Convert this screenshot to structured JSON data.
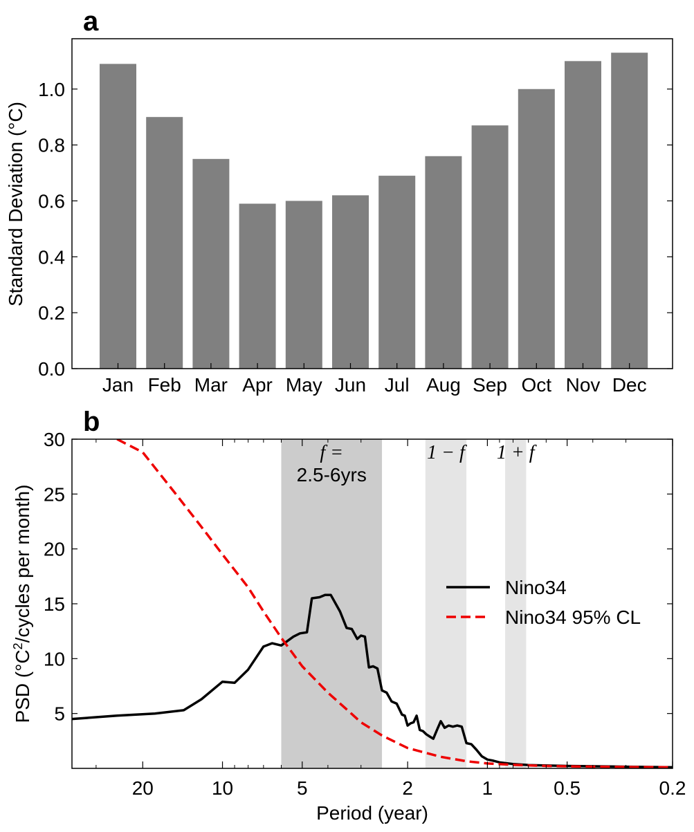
{
  "chart_data": [
    {
      "panel": "a",
      "type": "bar",
      "title": "",
      "xlabel": "",
      "ylabel": "Standard Deviation (°C)",
      "categories": [
        "Jan",
        "Feb",
        "Mar",
        "Apr",
        "May",
        "Jun",
        "Jul",
        "Aug",
        "Sep",
        "Oct",
        "Nov",
        "Dec"
      ],
      "values": [
        1.09,
        0.9,
        0.75,
        0.59,
        0.6,
        0.62,
        0.69,
        0.76,
        0.87,
        1.0,
        1.1,
        1.13
      ],
      "ylim": [
        0,
        1.18
      ],
      "yticks": [
        "0.0",
        "0.2",
        "0.4",
        "0.6",
        "0.8",
        "1.0"
      ],
      "bar_color": "#808080",
      "grid": false
    },
    {
      "panel": "b",
      "type": "line",
      "title": "",
      "xlabel": "Period (year)",
      "ylabel_parts": [
        "PSD (°C",
        "2",
        "/cycles per month)"
      ],
      "xscale": "log-frequency (period axis reversed)",
      "xlim": [
        37,
        0.2
      ],
      "ylim": [
        0,
        30
      ],
      "xticks": [
        "20",
        "10",
        "5",
        "2",
        "1",
        "0.5",
        "0.2"
      ],
      "yticks": [
        "5",
        "10",
        "15",
        "20",
        "25",
        "30"
      ],
      "bands": [
        {
          "period_range": [
            6,
            2.5
          ],
          "color": "#cccccc",
          "label_main": "f_E =",
          "label_sub": "2.5-6yrs"
        },
        {
          "period_range": [
            1.714,
            1.2
          ],
          "color": "#e5e5e5",
          "label_main": "1 − f_E"
        },
        {
          "period_range": [
            0.857,
            0.714
          ],
          "color": "#e5e5e5",
          "label_main": "1 + f_E"
        }
      ],
      "legend_position": "center-right",
      "series": [
        {
          "name": "Nino34",
          "color": "#000000",
          "style": "solid",
          "points": [
            [
              37,
              4.5
            ],
            [
              25,
              4.8
            ],
            [
              18,
              5.0
            ],
            [
              14,
              5.3
            ],
            [
              12,
              6.3
            ],
            [
              10,
              7.9
            ],
            [
              9,
              7.8
            ],
            [
              8,
              9.0
            ],
            [
              7,
              11.1
            ],
            [
              6.5,
              11.4
            ],
            [
              6,
              11.2
            ],
            [
              5.4,
              12.0
            ],
            [
              5.1,
              12.3
            ],
            [
              4.8,
              12.4
            ],
            [
              4.6,
              15.5
            ],
            [
              4.3,
              15.6
            ],
            [
              4.1,
              15.8
            ],
            [
              3.9,
              15.8
            ],
            [
              3.6,
              14.3
            ],
            [
              3.4,
              12.8
            ],
            [
              3.25,
              12.7
            ],
            [
              3.1,
              11.8
            ],
            [
              3.0,
              12.1
            ],
            [
              2.9,
              12.0
            ],
            [
              2.8,
              9.2
            ],
            [
              2.7,
              9.3
            ],
            [
              2.6,
              9.1
            ],
            [
              2.5,
              7.1
            ],
            [
              2.4,
              6.9
            ],
            [
              2.3,
              6.1
            ],
            [
              2.2,
              5.9
            ],
            [
              2.1,
              4.9
            ],
            [
              2.05,
              4.8
            ],
            [
              2.0,
              3.9
            ],
            [
              1.95,
              4.1
            ],
            [
              1.9,
              4.2
            ],
            [
              1.85,
              4.8
            ],
            [
              1.8,
              3.5
            ],
            [
              1.75,
              3.4
            ],
            [
              1.7,
              3.1
            ],
            [
              1.65,
              2.9
            ],
            [
              1.6,
              2.7
            ],
            [
              1.55,
              3.5
            ],
            [
              1.5,
              4.3
            ],
            [
              1.45,
              3.7
            ],
            [
              1.4,
              3.9
            ],
            [
              1.35,
              3.8
            ],
            [
              1.3,
              3.9
            ],
            [
              1.25,
              3.8
            ],
            [
              1.2,
              2.3
            ],
            [
              1.15,
              2.2
            ],
            [
              1.1,
              1.7
            ],
            [
              1.05,
              1.1
            ],
            [
              1.0,
              0.8
            ],
            [
              0.95,
              0.7
            ],
            [
              0.9,
              0.55
            ],
            [
              0.8,
              0.4
            ],
            [
              0.7,
              0.3
            ],
            [
              0.5,
              0.22
            ],
            [
              0.3,
              0.15
            ],
            [
              0.2,
              0.1
            ]
          ]
        },
        {
          "name": "Nino34 95% CL",
          "color": "#ee0000",
          "style": "dashed",
          "points": [
            [
              25,
              30.0
            ],
            [
              20,
              28.8
            ],
            [
              15,
              25.0
            ],
            [
              12,
              22.0
            ],
            [
              10,
              19.5
            ],
            [
              8,
              16.5
            ],
            [
              7,
              14.3
            ],
            [
              6,
              11.9
            ],
            [
              5,
              9.3
            ],
            [
              4,
              6.9
            ],
            [
              3.3,
              5.1
            ],
            [
              3,
              4.2
            ],
            [
              2.5,
              3.0
            ],
            [
              2,
              1.85
            ],
            [
              1.5,
              1.05
            ],
            [
              1.2,
              0.65
            ],
            [
              1,
              0.45
            ],
            [
              0.8,
              0.32
            ],
            [
              0.6,
              0.22
            ],
            [
              0.4,
              0.15
            ],
            [
              0.2,
              0.1
            ]
          ]
        }
      ]
    }
  ],
  "panels": {
    "a_letter": "a",
    "b_letter": "b"
  }
}
